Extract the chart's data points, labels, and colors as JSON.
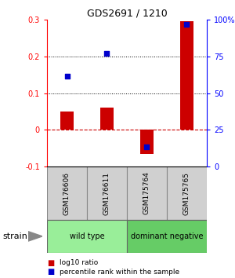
{
  "title": "GDS2691 / 1210",
  "samples": [
    "GSM176606",
    "GSM176611",
    "GSM175764",
    "GSM175765"
  ],
  "log10_ratio": [
    0.05,
    0.06,
    -0.065,
    0.295
  ],
  "percentile_rank": [
    61.5,
    77.0,
    13.5,
    96.5
  ],
  "groups": [
    {
      "label": "wild type",
      "samples": [
        0,
        1
      ],
      "color": "#99EE99"
    },
    {
      "label": "dominant negative",
      "samples": [
        2,
        3
      ],
      "color": "#66CC66"
    }
  ],
  "bar_color": "#CC0000",
  "dot_color": "#0000CC",
  "ylim_left": [
    -0.1,
    0.3
  ],
  "ylim_right": [
    0,
    100
  ],
  "yticks_left": [
    -0.1,
    0.0,
    0.1,
    0.2,
    0.3
  ],
  "yticks_right": [
    0,
    25,
    50,
    75,
    100
  ],
  "hlines": [
    0.1,
    0.2
  ],
  "zero_line": 0.0,
  "background_color": "#ffffff",
  "label_log10": "log10 ratio",
  "label_pct": "percentile rank within the sample",
  "strain_label": "strain",
  "bar_width": 0.35
}
